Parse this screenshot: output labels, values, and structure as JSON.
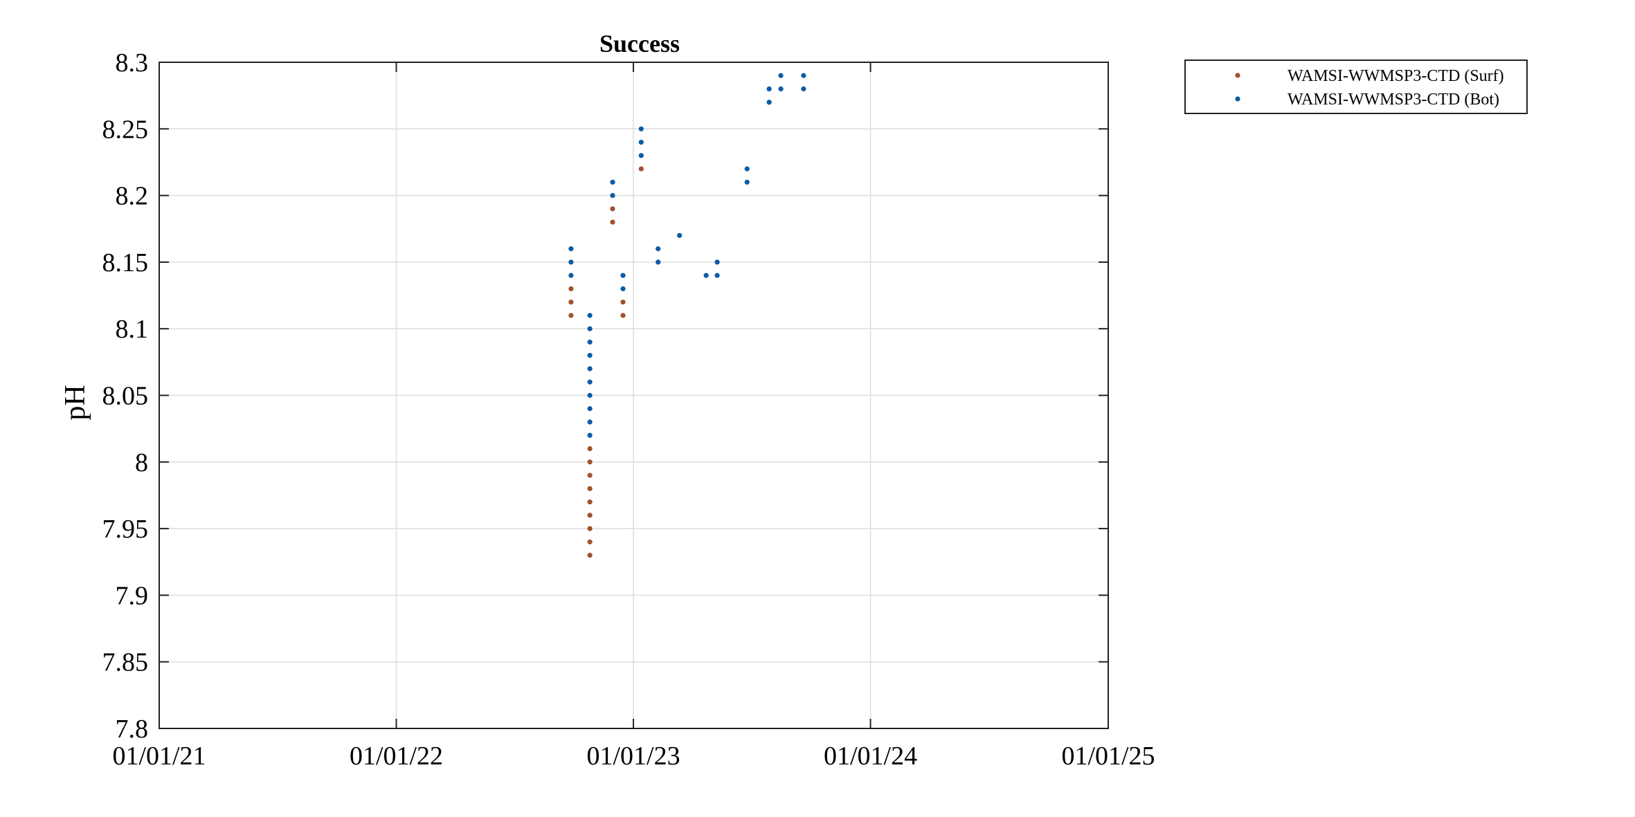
{
  "chart_data": {
    "type": "scatter",
    "title": "Success",
    "xlabel": "",
    "ylabel": "pH",
    "xlim": [
      "2021-01-01",
      "2025-01-01"
    ],
    "ylim": [
      7.8,
      8.3
    ],
    "xtick_labels": [
      "01/01/21",
      "01/01/22",
      "01/01/23",
      "01/01/24",
      "01/01/25"
    ],
    "xtick_dates": [
      "2021-01-01",
      "2022-01-01",
      "2023-01-01",
      "2024-01-01",
      "2025-01-01"
    ],
    "ytick_labels": [
      "7.8",
      "7.85",
      "7.9",
      "7.95",
      "8",
      "8.05",
      "8.1",
      "8.15",
      "8.2",
      "8.25",
      "8.3"
    ],
    "yticks": [
      7.8,
      7.85,
      7.9,
      7.95,
      8.0,
      8.05,
      8.1,
      8.15,
      8.2,
      8.25,
      8.3
    ],
    "grid": true,
    "legend_position": "outside top-right",
    "series": [
      {
        "name": "WAMSI-WWMSP3-CTD (Surf)",
        "color": "#A0522D",
        "points": [
          {
            "x": "2022-09-27",
            "y": 8.11
          },
          {
            "x": "2022-09-27",
            "y": 8.12
          },
          {
            "x": "2022-09-27",
            "y": 8.13
          },
          {
            "x": "2022-10-26",
            "y": 7.93
          },
          {
            "x": "2022-10-26",
            "y": 7.94
          },
          {
            "x": "2022-10-26",
            "y": 7.95
          },
          {
            "x": "2022-10-26",
            "y": 7.96
          },
          {
            "x": "2022-10-26",
            "y": 7.97
          },
          {
            "x": "2022-10-26",
            "y": 7.98
          },
          {
            "x": "2022-10-26",
            "y": 7.99
          },
          {
            "x": "2022-10-26",
            "y": 8.0
          },
          {
            "x": "2022-10-26",
            "y": 8.01
          },
          {
            "x": "2022-11-30",
            "y": 8.18
          },
          {
            "x": "2022-11-30",
            "y": 8.19
          },
          {
            "x": "2022-12-16",
            "y": 8.11
          },
          {
            "x": "2022-12-16",
            "y": 8.12
          },
          {
            "x": "2023-01-13",
            "y": 8.22
          }
        ]
      },
      {
        "name": "WAMSI-WWMSP3-CTD (Bot)",
        "color": "#0B5BA6",
        "points": [
          {
            "x": "2022-09-27",
            "y": 8.14
          },
          {
            "x": "2022-09-27",
            "y": 8.15
          },
          {
            "x": "2022-09-27",
            "y": 8.16
          },
          {
            "x": "2022-10-26",
            "y": 8.02
          },
          {
            "x": "2022-10-26",
            "y": 8.03
          },
          {
            "x": "2022-10-26",
            "y": 8.04
          },
          {
            "x": "2022-10-26",
            "y": 8.05
          },
          {
            "x": "2022-10-26",
            "y": 8.06
          },
          {
            "x": "2022-10-26",
            "y": 8.07
          },
          {
            "x": "2022-10-26",
            "y": 8.08
          },
          {
            "x": "2022-10-26",
            "y": 8.09
          },
          {
            "x": "2022-10-26",
            "y": 8.1
          },
          {
            "x": "2022-10-26",
            "y": 8.11
          },
          {
            "x": "2022-11-30",
            "y": 8.2
          },
          {
            "x": "2022-11-30",
            "y": 8.21
          },
          {
            "x": "2022-12-16",
            "y": 8.13
          },
          {
            "x": "2022-12-16",
            "y": 8.14
          },
          {
            "x": "2023-01-13",
            "y": 8.23
          },
          {
            "x": "2023-01-13",
            "y": 8.24
          },
          {
            "x": "2023-01-13",
            "y": 8.25
          },
          {
            "x": "2023-02-08",
            "y": 8.15
          },
          {
            "x": "2023-02-08",
            "y": 8.16
          },
          {
            "x": "2023-03-13",
            "y": 8.17
          },
          {
            "x": "2023-04-23",
            "y": 8.14
          },
          {
            "x": "2023-05-10",
            "y": 8.14
          },
          {
            "x": "2023-05-10",
            "y": 8.15
          },
          {
            "x": "2023-06-25",
            "y": 8.21
          },
          {
            "x": "2023-06-25",
            "y": 8.22
          },
          {
            "x": "2023-07-29",
            "y": 8.27
          },
          {
            "x": "2023-07-29",
            "y": 8.28
          },
          {
            "x": "2023-08-16",
            "y": 8.28
          },
          {
            "x": "2023-08-16",
            "y": 8.29
          },
          {
            "x": "2023-09-20",
            "y": 8.28
          },
          {
            "x": "2023-09-20",
            "y": 8.29
          }
        ]
      }
    ]
  }
}
